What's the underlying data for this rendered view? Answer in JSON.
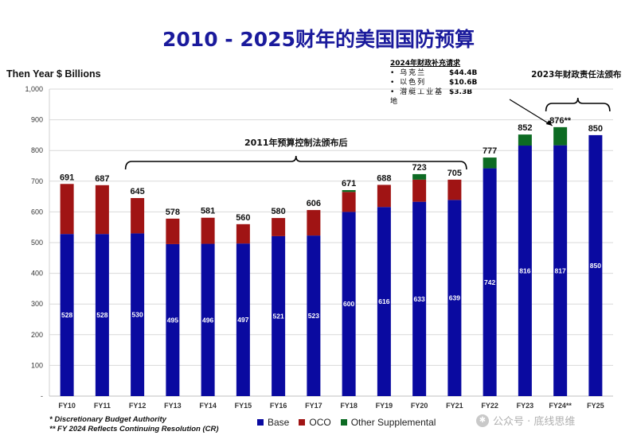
{
  "page": {
    "title": "2010 - 2025财年的美国国防预算",
    "ylabel": "Then Year $ Billions",
    "callout": {
      "title": "2024年财政补充请求",
      "rows": [
        {
          "label": "• 乌克兰",
          "value": "$44.4B"
        },
        {
          "label": "• 以色列",
          "value": "$10.6B"
        },
        {
          "label": "• 潜艇工业基地",
          "value": "$3.3B"
        }
      ]
    },
    "notes": [
      "* Discretionary Budget Authority",
      "** FY 2024 Reflects Continuing Resolution (CR)"
    ],
    "watermark": "公众号 · 底线思维"
  },
  "chart_data": {
    "type": "bar",
    "stacked": true,
    "ylim": [
      0,
      1000
    ],
    "yticks": [
      "-",
      "100",
      "200",
      "300",
      "400",
      "500",
      "600",
      "700",
      "800",
      "900",
      "1,000"
    ],
    "categories": [
      "FY10",
      "FY11",
      "FY12",
      "FY13",
      "FY14",
      "FY15",
      "FY16",
      "FY17",
      "FY18",
      "FY19",
      "FY20",
      "FY21",
      "FY22",
      "FY23",
      "FY24**",
      "FY25"
    ],
    "series": [
      {
        "name": "Base",
        "color": "#0a0aa0",
        "values": [
          528,
          528,
          530,
          495,
          496,
          497,
          521,
          523,
          600,
          616,
          633,
          639,
          742,
          816,
          817,
          850
        ]
      },
      {
        "name": "OCO",
        "color": "#a01414",
        "values": [
          163,
          159,
          115,
          83,
          85,
          63,
          59,
          83,
          65,
          72,
          72,
          66,
          0,
          0,
          0,
          0
        ]
      },
      {
        "name": "Other Supplemental",
        "color": "#0d6b23",
        "values": [
          0,
          0,
          0,
          0,
          0,
          0,
          0,
          0,
          6,
          0,
          18,
          0,
          35,
          36,
          59,
          0
        ]
      }
    ],
    "base_labels": [
      "528",
      "528",
      "530",
      "495",
      "496",
      "497",
      "521",
      "523",
      "600",
      "616",
      "633",
      "639",
      "742",
      "816",
      "817",
      "850"
    ],
    "totals": [
      "691",
      "687",
      "645",
      "578",
      "581",
      "560",
      "580",
      "606",
      "671",
      "688",
      "723",
      "705",
      "777",
      "852",
      "876**",
      "850"
    ],
    "annotations": [
      {
        "text": "2011年预算控制法颁布后",
        "from": "FY12",
        "to": "FY21"
      },
      {
        "text": "2023年财政责任法颁布",
        "from": "FY24**",
        "to": "FY25"
      }
    ],
    "grid": true
  }
}
